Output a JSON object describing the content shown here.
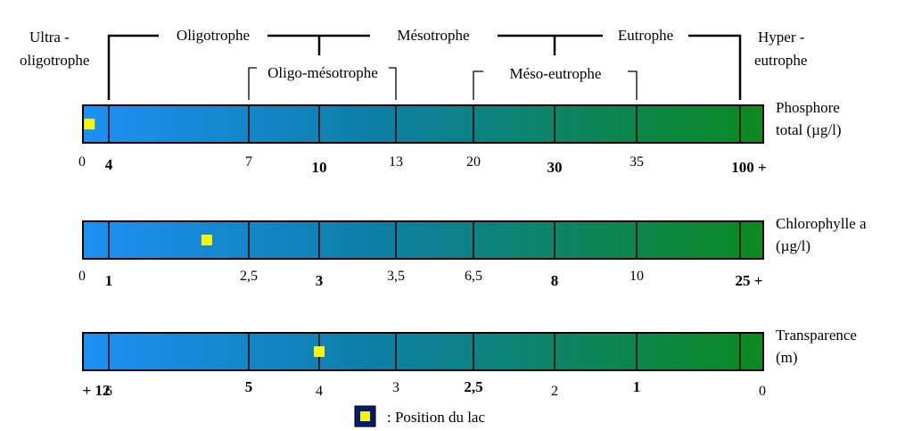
{
  "categories": {
    "main": [
      {
        "id": "ultra",
        "lines": [
          "Ultra -",
          "oligotrophe"
        ]
      },
      {
        "id": "oligo",
        "lines": [
          "Oligotrophe"
        ]
      },
      {
        "id": "meso",
        "lines": [
          "Mésotrophe"
        ]
      },
      {
        "id": "eutrophe",
        "lines": [
          "Eutrophe"
        ]
      },
      {
        "id": "hyper",
        "lines": [
          "Hyper -",
          "eutrophe"
        ]
      }
    ],
    "transitional": [
      {
        "id": "oligo-meso",
        "label": "Oligo-mésotrophe"
      },
      {
        "id": "meso-eu",
        "label": "Méso-eutrophe"
      }
    ]
  },
  "scales": [
    {
      "id": "phosphore",
      "param_lines": [
        "Phosphore",
        "total (µg/l)"
      ],
      "ticks": [
        {
          "label": "0",
          "bold": false
        },
        {
          "label": "4",
          "bold": true
        },
        {
          "label": "7",
          "bold": false
        },
        {
          "label": "10",
          "bold": true
        },
        {
          "label": "13",
          "bold": false
        },
        {
          "label": "20",
          "bold": false
        },
        {
          "label": "30",
          "bold": true
        },
        {
          "label": "35",
          "bold": false
        },
        {
          "label": "100 +",
          "bold": true
        }
      ],
      "lake_position": 0.25
    },
    {
      "id": "chlorophylle",
      "param_lines": [
        "Chlorophylle a",
        "(µg/l)"
      ],
      "ticks": [
        {
          "label": "0",
          "bold": false
        },
        {
          "label": "1",
          "bold": true
        },
        {
          "label": "2,5",
          "bold": false
        },
        {
          "label": "3",
          "bold": true
        },
        {
          "label": "3,5",
          "bold": false
        },
        {
          "label": "6,5",
          "bold": false
        },
        {
          "label": "8",
          "bold": true
        },
        {
          "label": "10",
          "bold": false
        },
        {
          "label": "25 +",
          "bold": true
        }
      ],
      "lake_position": 1.7
    },
    {
      "id": "transparence",
      "param_lines": [
        "Transparence",
        "(m)"
      ],
      "ticks": [
        {
          "label": "+ 12",
          "bold": true
        },
        {
          "label": "6",
          "bold": false
        },
        {
          "label": "5",
          "bold": true
        },
        {
          "label": "4",
          "bold": false
        },
        {
          "label": "3",
          "bold": false
        },
        {
          "label": "2,5",
          "bold": true
        },
        {
          "label": "2",
          "bold": false
        },
        {
          "label": "1",
          "bold": true
        },
        {
          "label": "0",
          "bold": false
        }
      ],
      "lake_position": 3.0
    }
  ],
  "legend": {
    "label": ": Position du lac"
  },
  "colors": {
    "bar_start": "#1e90f5",
    "bar_end": "#0b8a1e",
    "marker": "#f5f50a",
    "legend_box": "#061a6e"
  }
}
